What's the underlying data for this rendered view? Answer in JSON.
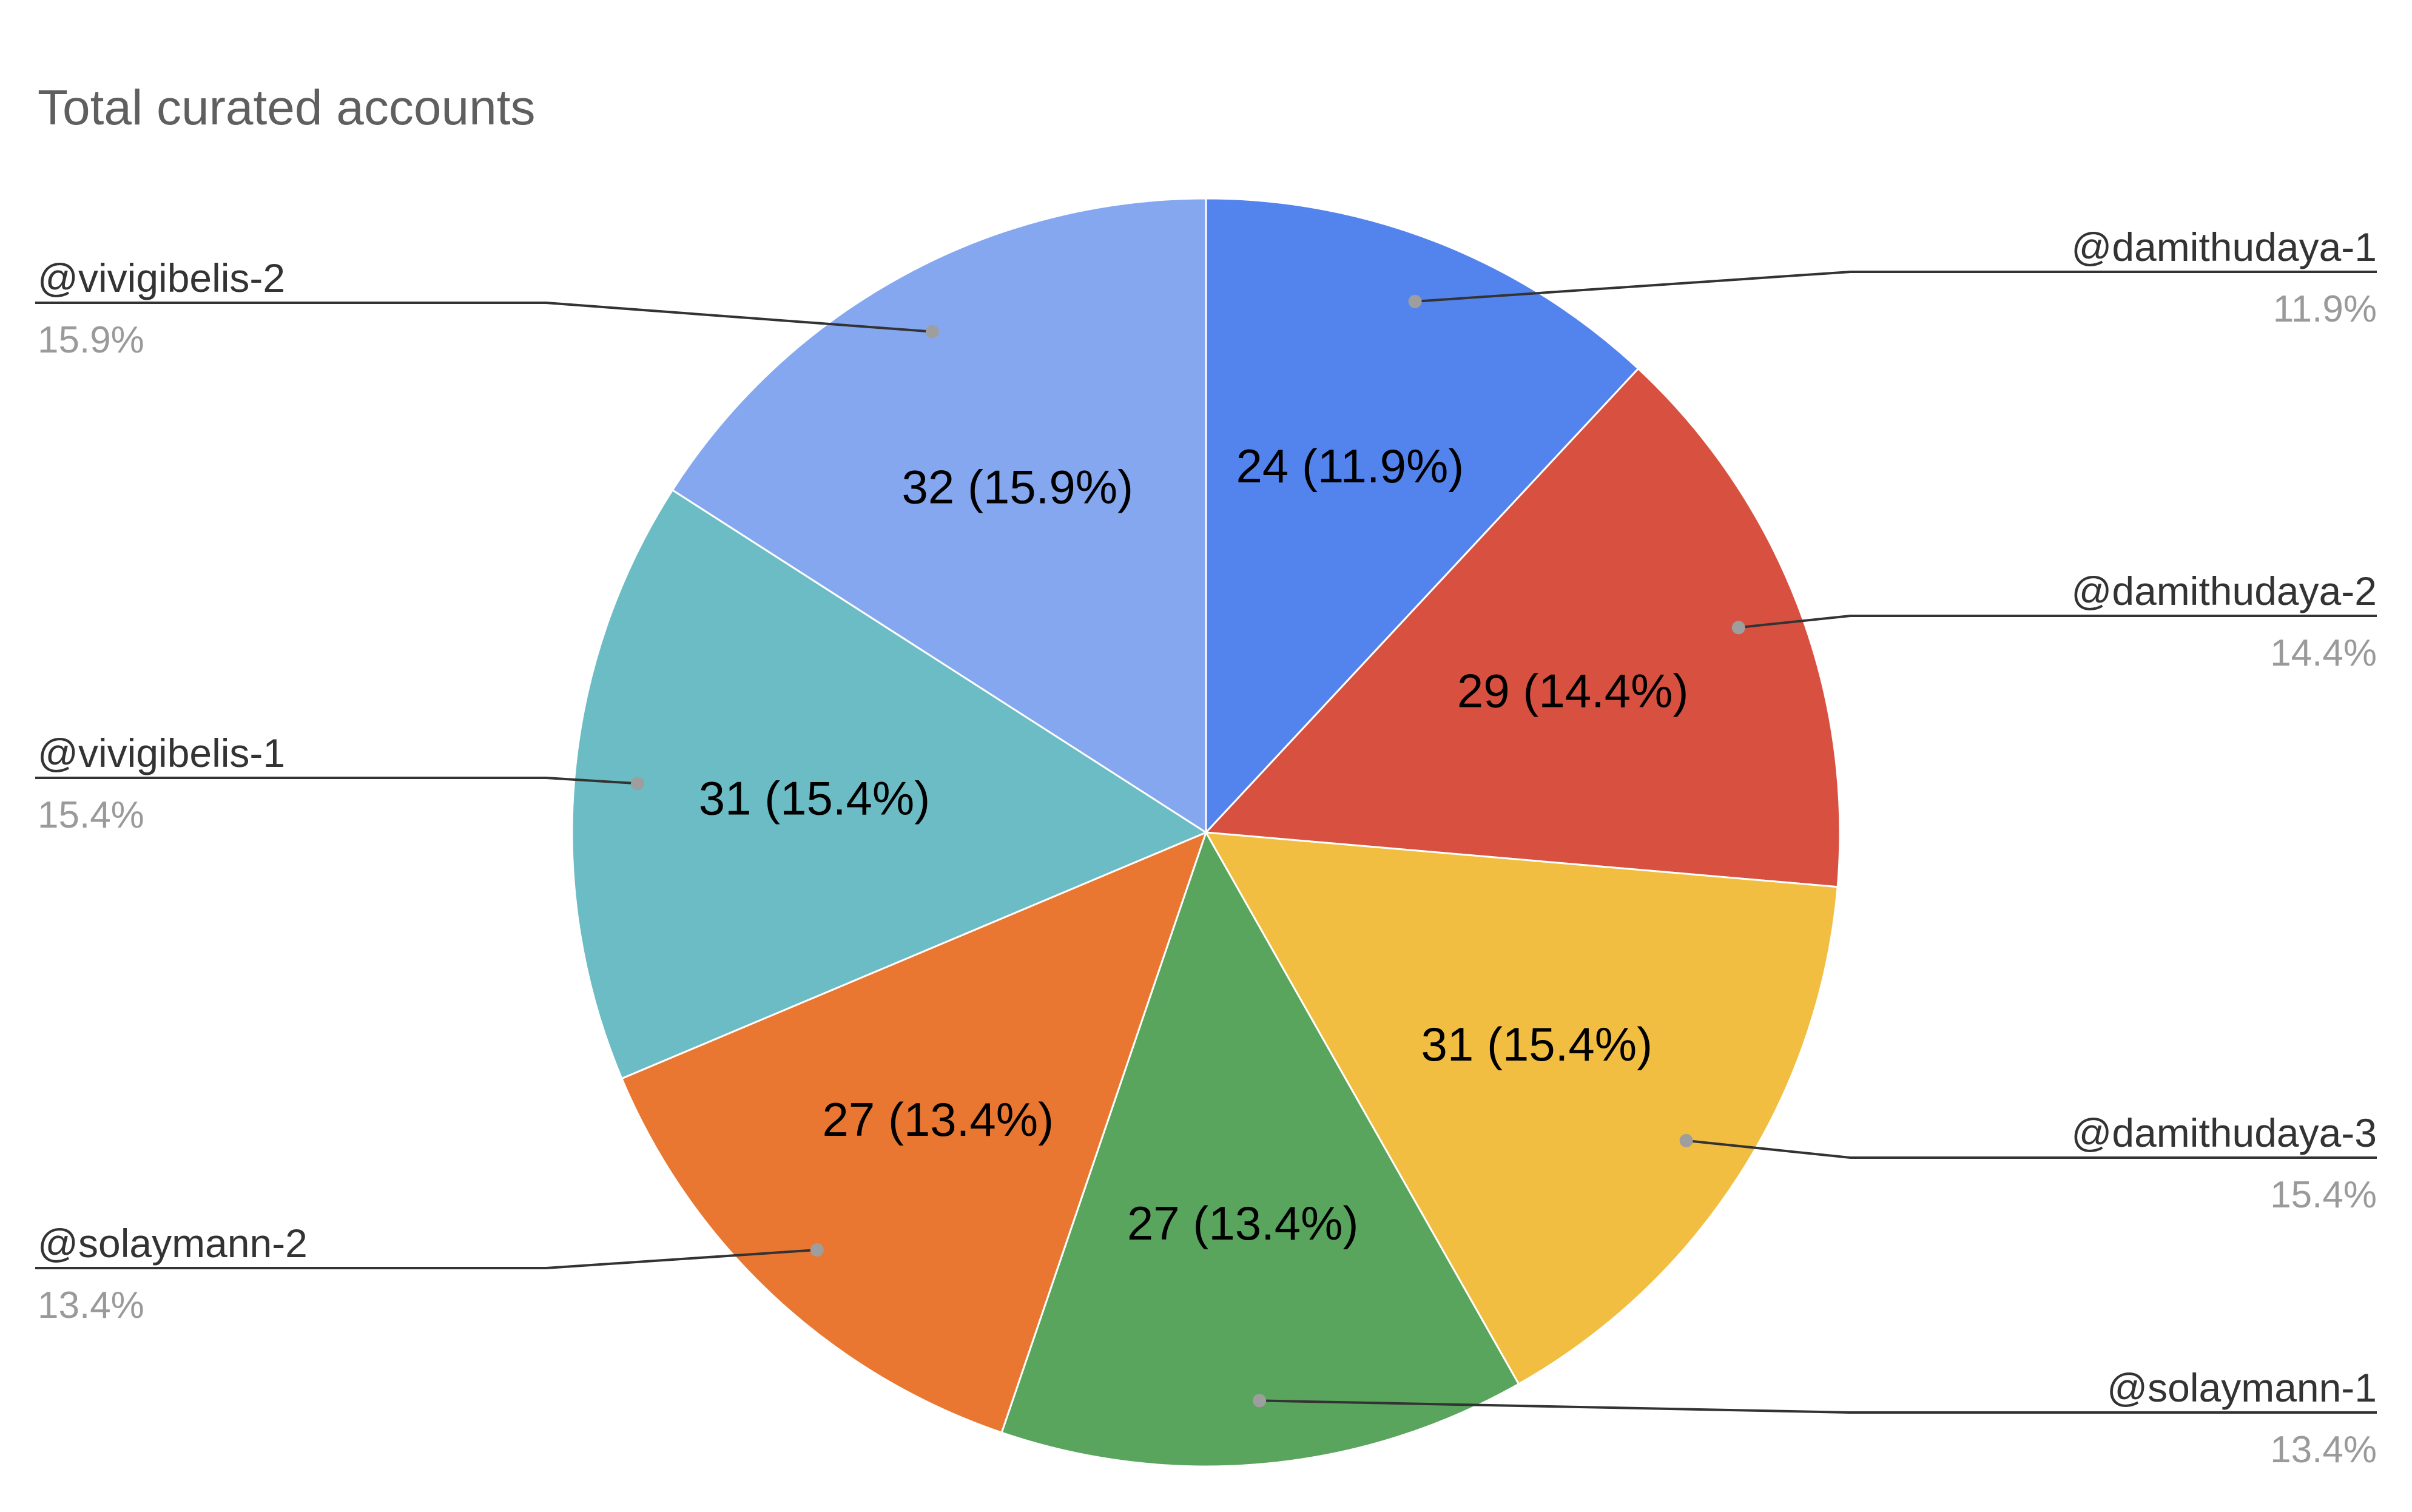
{
  "chart_data": {
    "type": "pie",
    "title": "Total curated accounts",
    "start_angle_deg": 0,
    "direction": "clockwise",
    "slices": [
      {
        "name": "@damithudaya-1",
        "value": 24,
        "percent_label": "11.9%",
        "slice_label": "24 (11.9%)",
        "color": "#5384ed"
      },
      {
        "name": "@damithudaya-2",
        "value": 29,
        "percent_label": "14.4%",
        "slice_label": "29 (14.4%)",
        "color": "#d85140"
      },
      {
        "name": "@damithudaya-3",
        "value": 31,
        "percent_label": "15.4%",
        "slice_label": "31 (15.4%)",
        "color": "#f1be42"
      },
      {
        "name": "@solaymann-1",
        "value": 27,
        "percent_label": "13.4%",
        "slice_label": "27 (13.4%)",
        "color": "#59a55d"
      },
      {
        "name": "@solaymann-2",
        "value": 27,
        "percent_label": "13.4%",
        "slice_label": "27 (13.4%)",
        "color": "#ea7731"
      },
      {
        "name": "@vivigibelis-1",
        "value": 31,
        "percent_label": "15.4%",
        "slice_label": "31 (15.4%)",
        "color": "#6bbcc4"
      },
      {
        "name": "@vivigibelis-2",
        "value": 32,
        "percent_label": "15.9%",
        "slice_label": "32 (15.9%)",
        "color": "#84a7ef"
      }
    ],
    "legend": "outside labels with leader lines",
    "slice_label_color": "#000000",
    "title_color": "#5f5f5f",
    "percent_text_color": "#9a9a9a"
  }
}
